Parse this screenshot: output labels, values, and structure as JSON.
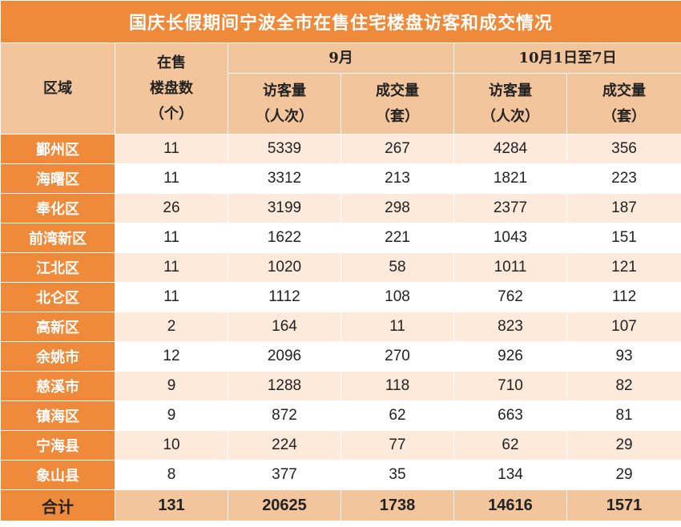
{
  "title": "国庆长假期间宁波全市在售住宅楼盘访客和成交情况",
  "headers": {
    "region": "区域",
    "projects_l1": "在售",
    "projects_l2": "楼盘数",
    "projects_l3": "（个）",
    "sep": "9月",
    "oct": "10月1日至7日",
    "visitors_l1": "访客量",
    "visitors_l2": "（人次）",
    "deals_l1": "成交量",
    "deals_l2": "（套）"
  },
  "rows": [
    {
      "region": "鄞州区",
      "projects": "11",
      "sep_visitors": "5339",
      "sep_deals": "267",
      "oct_visitors": "4284",
      "oct_deals": "356"
    },
    {
      "region": "海曙区",
      "projects": "11",
      "sep_visitors": "3312",
      "sep_deals": "213",
      "oct_visitors": "1821",
      "oct_deals": "223"
    },
    {
      "region": "奉化区",
      "projects": "26",
      "sep_visitors": "3199",
      "sep_deals": "298",
      "oct_visitors": "2377",
      "oct_deals": "187"
    },
    {
      "region": "前湾新区",
      "projects": "11",
      "sep_visitors": "1622",
      "sep_deals": "221",
      "oct_visitors": "1043",
      "oct_deals": "151"
    },
    {
      "region": "江北区",
      "projects": "11",
      "sep_visitors": "1020",
      "sep_deals": "58",
      "oct_visitors": "1011",
      "oct_deals": "121"
    },
    {
      "region": "北仑区",
      "projects": "11",
      "sep_visitors": "1112",
      "sep_deals": "108",
      "oct_visitors": "762",
      "oct_deals": "112"
    },
    {
      "region": "高新区",
      "projects": "2",
      "sep_visitors": "164",
      "sep_deals": "11",
      "oct_visitors": "823",
      "oct_deals": "107"
    },
    {
      "region": "余姚市",
      "projects": "12",
      "sep_visitors": "2096",
      "sep_deals": "270",
      "oct_visitors": "926",
      "oct_deals": "93"
    },
    {
      "region": "慈溪市",
      "projects": "9",
      "sep_visitors": "1288",
      "sep_deals": "118",
      "oct_visitors": "710",
      "oct_deals": "82"
    },
    {
      "region": "镇海区",
      "projects": "9",
      "sep_visitors": "872",
      "sep_deals": "62",
      "oct_visitors": "663",
      "oct_deals": "81"
    },
    {
      "region": "宁海县",
      "projects": "10",
      "sep_visitors": "224",
      "sep_deals": "77",
      "oct_visitors": "62",
      "oct_deals": "29"
    },
    {
      "region": "象山县",
      "projects": "8",
      "sep_visitors": "377",
      "sep_deals": "35",
      "oct_visitors": "134",
      "oct_deals": "29"
    }
  ],
  "total": {
    "region": "合计",
    "projects": "131",
    "sep_visitors": "20625",
    "sep_deals": "1738",
    "oct_visitors": "14616",
    "oct_deals": "1571"
  },
  "colors": {
    "title_bg": "#ee8a3a",
    "header_bg": "#f2c59c",
    "stripe_bg": "#fdeadb",
    "region_bg": "#ee8a3a"
  }
}
